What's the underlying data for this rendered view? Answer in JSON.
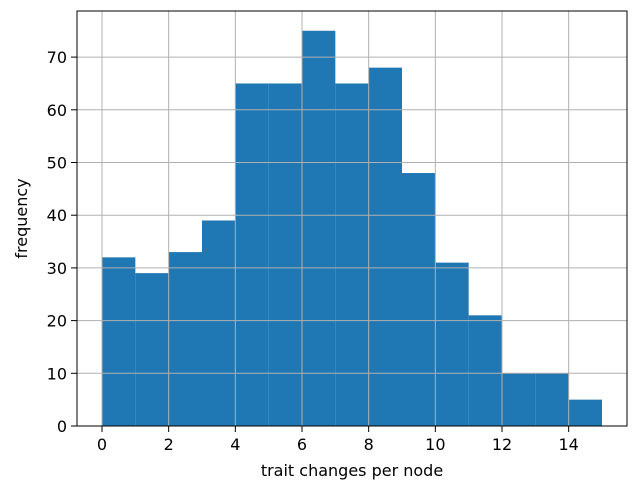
{
  "chart_data": {
    "type": "bar",
    "title": "",
    "xlabel": "trait changes per node",
    "ylabel": "frequency",
    "bins": [
      {
        "x0": 0,
        "x1": 1,
        "value": 32
      },
      {
        "x0": 1,
        "x1": 2,
        "value": 29
      },
      {
        "x0": 2,
        "x1": 3,
        "value": 33
      },
      {
        "x0": 3,
        "x1": 4,
        "value": 39
      },
      {
        "x0": 4,
        "x1": 5,
        "value": 65
      },
      {
        "x0": 5,
        "x1": 6,
        "value": 65
      },
      {
        "x0": 6,
        "x1": 7,
        "value": 75
      },
      {
        "x0": 7,
        "x1": 8,
        "value": 65
      },
      {
        "x0": 8,
        "x1": 9,
        "value": 68
      },
      {
        "x0": 9,
        "x1": 10,
        "value": 48
      },
      {
        "x0": 10,
        "x1": 11,
        "value": 31
      },
      {
        "x0": 11,
        "x1": 12,
        "value": 21
      },
      {
        "x0": 12,
        "x1": 13,
        "value": 10
      },
      {
        "x0": 13,
        "x1": 14,
        "value": 10
      },
      {
        "x0": 14,
        "x1": 15,
        "value": 5
      }
    ],
    "xlim": [
      -0.75,
      15.75
    ],
    "ylim": [
      0,
      78.75
    ],
    "xticks": [
      0,
      2,
      4,
      6,
      8,
      10,
      12,
      14
    ],
    "yticks": [
      0,
      10,
      20,
      30,
      40,
      50,
      60,
      70
    ],
    "grid": true,
    "bar_color": "#1f77b4",
    "grid_color": "#b0b0b0"
  }
}
